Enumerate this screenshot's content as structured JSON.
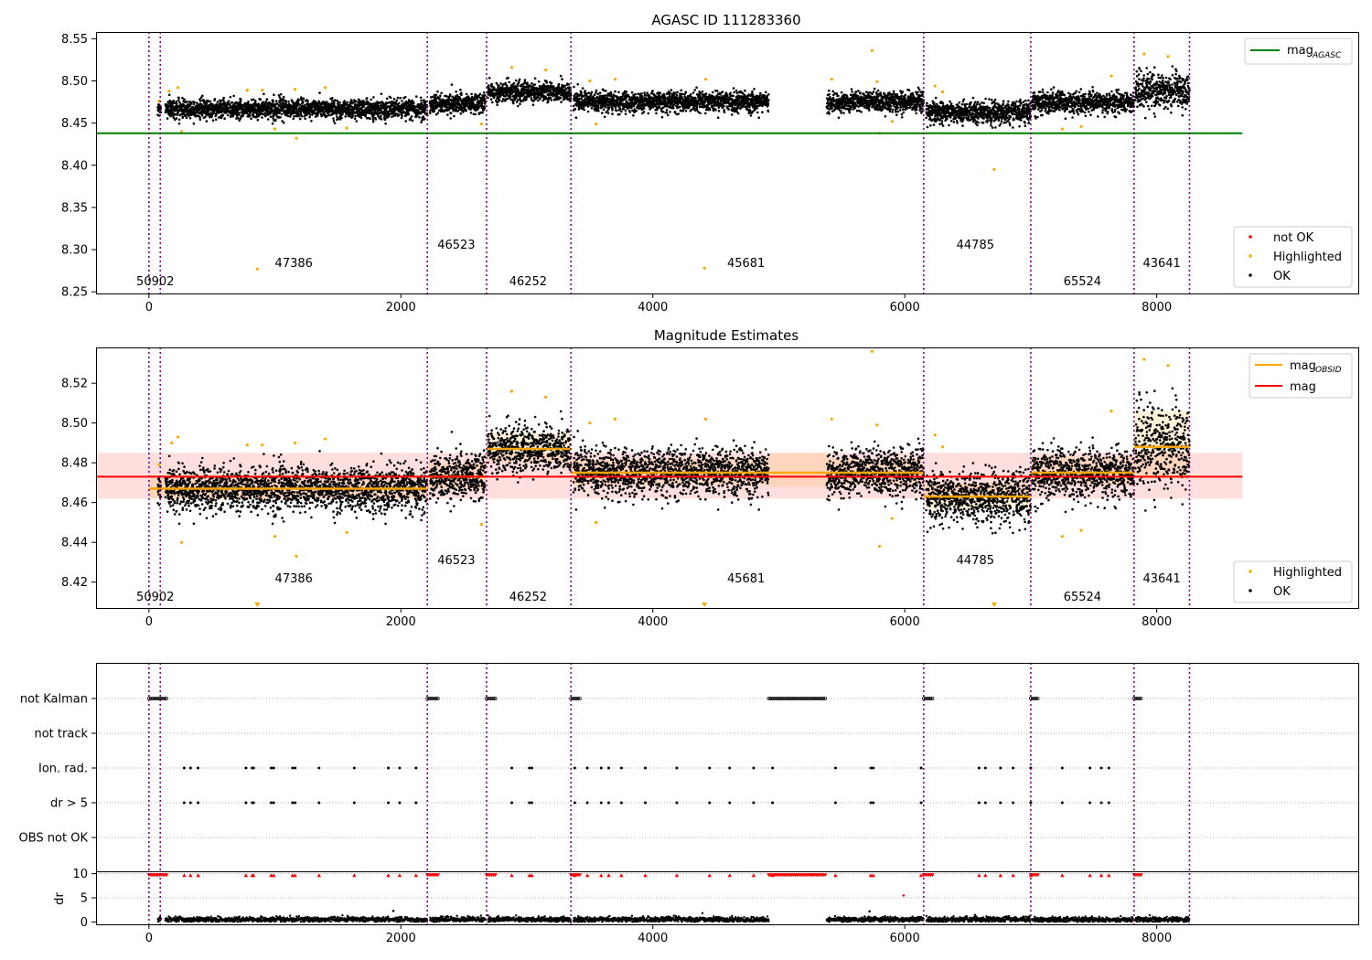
{
  "chart_data": [
    {
      "type": "scatter",
      "title": "AGASC ID 111283360",
      "xlim": [
        -420,
        9600
      ],
      "ylim": [
        8.248,
        8.558
      ],
      "xticks": [
        0,
        2000,
        4000,
        6000,
        8000
      ],
      "yticks": [
        8.25,
        8.3,
        8.35,
        8.4,
        8.45,
        8.5,
        8.55
      ],
      "agasc_mag": 8.438,
      "legend_lines": [
        {
          "label": "mag",
          "sub": "AGASC",
          "color": "#008000"
        }
      ],
      "legend_points": [
        {
          "label": "not OK",
          "color": "#ff0000"
        },
        {
          "label": "Highlighted",
          "color": "#ffa500"
        },
        {
          "label": "OK",
          "color": "#000000"
        }
      ],
      "obsids": [
        {
          "label": "50902",
          "x": 50,
          "level": 0
        },
        {
          "label": "47386",
          "x": 1150,
          "level": 1
        },
        {
          "label": "46523",
          "x": 2440,
          "level": 2
        },
        {
          "label": "46252",
          "x": 3010,
          "level": 0
        },
        {
          "label": "45681",
          "x": 4740,
          "level": 1
        },
        {
          "label": "44785",
          "x": 6560,
          "level": 2
        },
        {
          "label": "65524",
          "x": 7410,
          "level": 0
        },
        {
          "label": "43641",
          "x": 8040,
          "level": 1
        }
      ],
      "highlighted_points": [
        [
          80,
          8.476
        ],
        [
          160,
          8.488
        ],
        [
          230,
          8.492
        ],
        [
          260,
          8.44
        ],
        [
          780,
          8.489
        ],
        [
          860,
          8.277
        ],
        [
          900,
          8.489
        ],
        [
          1000,
          8.443
        ],
        [
          1160,
          8.49
        ],
        [
          1170,
          8.432
        ],
        [
          1400,
          8.492
        ],
        [
          1570,
          8.444
        ],
        [
          2640,
          8.449
        ],
        [
          2880,
          8.516
        ],
        [
          3150,
          8.513
        ],
        [
          3550,
          8.449
        ],
        [
          3500,
          8.5
        ],
        [
          3700,
          8.502
        ],
        [
          4410,
          8.278
        ],
        [
          4420,
          8.502
        ],
        [
          5420,
          8.502
        ],
        [
          5740,
          8.536
        ],
        [
          5780,
          8.499
        ],
        [
          5800,
          8.438
        ],
        [
          5900,
          8.452
        ],
        [
          6240,
          8.494
        ],
        [
          6300,
          8.487
        ],
        [
          6710,
          8.395
        ],
        [
          7250,
          8.443
        ],
        [
          7400,
          8.446
        ],
        [
          7640,
          8.506
        ],
        [
          7900,
          8.532
        ],
        [
          8090,
          8.529
        ]
      ]
    },
    {
      "type": "scatter",
      "title": "Magnitude Estimates",
      "xlim": [
        -420,
        9600
      ],
      "ylim": [
        8.407,
        8.538
      ],
      "xticks": [
        0,
        2000,
        4000,
        6000,
        8000
      ],
      "yticks": [
        8.42,
        8.44,
        8.46,
        8.48,
        8.5,
        8.52
      ],
      "mag": 8.473,
      "mag_band": [
        8.462,
        8.485
      ],
      "legend_lines": [
        {
          "label": "mag",
          "sub": "OBSID",
          "color": "#ffa500"
        },
        {
          "label": "mag",
          "sub": "",
          "color": "#ff0000"
        }
      ],
      "legend_points": [
        {
          "label": "Highlighted",
          "color": "#ffa500"
        },
        {
          "label": "OK",
          "color": "#000000"
        }
      ],
      "obsid_segments": [
        {
          "x0": 0,
          "x1": 2210,
          "mag": 8.467,
          "lo": 8.462,
          "hi": 8.474
        },
        {
          "x0": 2210,
          "x1": 2680,
          "mag": 8.473,
          "lo": 8.467,
          "hi": 8.48
        },
        {
          "x0": 2680,
          "x1": 3350,
          "mag": 8.487,
          "lo": 8.48,
          "hi": 8.495
        },
        {
          "x0": 3350,
          "x1": 4920,
          "mag": 8.475,
          "lo": 8.469,
          "hi": 8.482
        },
        {
          "x0": 4920,
          "x1": 5380,
          "mag": 8.475,
          "lo": 8.468,
          "hi": 8.485
        },
        {
          "x0": 5380,
          "x1": 6150,
          "mag": 8.475,
          "lo": 8.469,
          "hi": 8.482
        },
        {
          "x0": 6150,
          "x1": 7000,
          "mag": 8.463,
          "lo": 8.457,
          "hi": 8.47
        },
        {
          "x0": 7000,
          "x1": 7820,
          "mag": 8.475,
          "lo": 8.469,
          "hi": 8.483
        },
        {
          "x0": 7820,
          "x1": 8260,
          "mag": 8.488,
          "lo": 8.472,
          "hi": 8.506
        }
      ],
      "obsids": [
        {
          "label": "50902",
          "x": 50,
          "level": 0
        },
        {
          "label": "47386",
          "x": 1150,
          "level": 1
        },
        {
          "label": "46523",
          "x": 2440,
          "level": 2
        },
        {
          "label": "46252",
          "x": 3010,
          "level": 0
        },
        {
          "label": "45681",
          "x": 4740,
          "level": 1
        },
        {
          "label": "44785",
          "x": 6560,
          "level": 2
        },
        {
          "label": "65524",
          "x": 7410,
          "level": 0
        },
        {
          "label": "43641",
          "x": 8040,
          "level": 1
        }
      ],
      "highlighted_points": [
        [
          80,
          8.479
        ],
        [
          180,
          8.49
        ],
        [
          230,
          8.493
        ],
        [
          260,
          8.44
        ],
        [
          780,
          8.489
        ],
        [
          900,
          8.489
        ],
        [
          1000,
          8.443
        ],
        [
          1160,
          8.49
        ],
        [
          1170,
          8.433
        ],
        [
          1400,
          8.492
        ],
        [
          1570,
          8.445
        ],
        [
          2640,
          8.449
        ],
        [
          2880,
          8.516
        ],
        [
          3150,
          8.513
        ],
        [
          3500,
          8.5
        ],
        [
          3550,
          8.45
        ],
        [
          3700,
          8.502
        ],
        [
          4420,
          8.502
        ],
        [
          5420,
          8.502
        ],
        [
          5740,
          8.536
        ],
        [
          5780,
          8.499
        ],
        [
          5800,
          8.438
        ],
        [
          5900,
          8.452
        ],
        [
          6240,
          8.494
        ],
        [
          6300,
          8.488
        ],
        [
          7250,
          8.443
        ],
        [
          7400,
          8.446
        ],
        [
          7640,
          8.506
        ],
        [
          7900,
          8.532
        ],
        [
          8090,
          8.529
        ]
      ],
      "offscale_markers": [
        860,
        4410,
        6710
      ]
    },
    {
      "type": "scatter",
      "title": "",
      "xlim": [
        -420,
        9600
      ],
      "flag_rows": [
        "not Kalman",
        "not track",
        "Ion. rad.",
        "dr > 5",
        "OBS not OK"
      ],
      "not_kalman_ranges": [
        [
          0,
          150
        ],
        [
          2210,
          2300
        ],
        [
          2680,
          2760
        ],
        [
          3350,
          3420
        ],
        [
          4920,
          5380
        ],
        [
          6150,
          6220
        ],
        [
          7000,
          7060
        ],
        [
          7820,
          7880
        ]
      ],
      "ion_rad_times": [
        280,
        330,
        390,
        770,
        820,
        830,
        970,
        990,
        1140,
        1160,
        1350,
        1630,
        1900,
        1990,
        2120,
        2880,
        3020,
        3040,
        3380,
        3480,
        3590,
        3650,
        3750,
        3940,
        4190,
        4450,
        4610,
        4800,
        4950,
        5450,
        5730,
        5750,
        6130,
        6590,
        6640,
        6760,
        6860,
        7000,
        7250,
        7470,
        7560,
        7620
      ],
      "dr_gt5_times": [
        280,
        330,
        390,
        770,
        820,
        830,
        970,
        990,
        1140,
        1160,
        1350,
        1630,
        1900,
        1990,
        2120,
        2880,
        3020,
        3040,
        3380,
        3480,
        3590,
        3650,
        3750,
        3940,
        4190,
        4450,
        4610,
        4800,
        4950,
        5450,
        5730,
        5750,
        6130,
        6590,
        6640,
        6760,
        6860,
        7000,
        7250,
        7470,
        7560,
        7620
      ],
      "dr_ylabel": "dr",
      "dr_yticks": [
        0,
        5,
        10
      ],
      "dr_ylim": [
        -0.5,
        10.5
      ],
      "dr_outliers": [
        [
          1940,
          2.3
        ],
        [
          5720,
          2.2
        ],
        [
          5990,
          5.5
        ]
      ]
    }
  ],
  "obsid_boundaries": [
    0,
    90,
    2210,
    2680,
    3350,
    6150,
    7000,
    7820,
    8260
  ],
  "data_segments": [
    {
      "x0": 70,
      "x1": 95,
      "level": 8.468,
      "sd": 0.003
    },
    {
      "x0": 130,
      "x1": 2210,
      "level": 8.467,
      "sd": 0.0055
    },
    {
      "x0": 2230,
      "x1": 2670,
      "level": 8.473,
      "sd": 0.006
    },
    {
      "x0": 2690,
      "x1": 3350,
      "level": 8.487,
      "sd": 0.0058
    },
    {
      "x0": 3370,
      "x1": 4920,
      "level": 8.475,
      "sd": 0.0058
    },
    {
      "x0": 5380,
      "x1": 6150,
      "level": 8.475,
      "sd": 0.0058
    },
    {
      "x0": 6170,
      "x1": 7000,
      "level": 8.463,
      "sd": 0.0062
    },
    {
      "x0": 7010,
      "x1": 7820,
      "level": 8.475,
      "sd": 0.0063
    },
    {
      "x0": 7830,
      "x1": 8260,
      "level": 8.488,
      "sd": 0.01
    }
  ],
  "colors": {
    "ok": "#000000",
    "highlighted": "#ffa500",
    "not_ok": "#ff0000",
    "boundary": "#800080",
    "agasc": "#008000",
    "mag": "#ff0000",
    "obsid_line": "#ffa500"
  }
}
